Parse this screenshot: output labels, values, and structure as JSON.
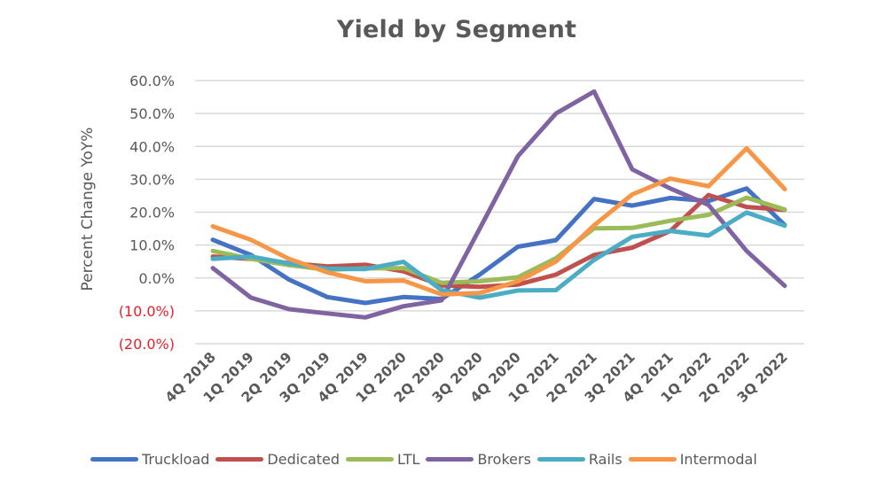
{
  "chart_data": {
    "type": "line",
    "title": "Yield by Segment",
    "xlabel": "",
    "ylabel": "Percent Change YoY%",
    "ylim": [
      -20,
      60
    ],
    "y_ticks": [
      {
        "value": 60,
        "label": "60.0%",
        "negative": false
      },
      {
        "value": 50,
        "label": "50.0%",
        "negative": false
      },
      {
        "value": 40,
        "label": "40.0%",
        "negative": false
      },
      {
        "value": 30,
        "label": "30.0%",
        "negative": false
      },
      {
        "value": 20,
        "label": "20.0%",
        "negative": false
      },
      {
        "value": 10,
        "label": "10.0%",
        "negative": false
      },
      {
        "value": 0,
        "label": "0.0%",
        "negative": false
      },
      {
        "value": -10,
        "label": "(10.0%)",
        "negative": true
      },
      {
        "value": -20,
        "label": "(20.0%)",
        "negative": true
      }
    ],
    "grid": true,
    "legend_position": "bottom",
    "categories": [
      "4Q 2018",
      "1Q 2019",
      "2Q 2019",
      "3Q 2019",
      "4Q 2019",
      "1Q 2020",
      "2Q 2020",
      "3Q 2020",
      "4Q 2020",
      "1Q 2021",
      "2Q 2021",
      "3Q 2021",
      "4Q 2021",
      "1Q 2022",
      "2Q 2022",
      "3Q 2022"
    ],
    "series": [
      {
        "name": "Truckload",
        "color": "#4472C4",
        "values": [
          11.6,
          7.0,
          -0.5,
          -5.8,
          -7.6,
          -5.8,
          -6.4,
          1.0,
          9.5,
          11.5,
          24.0,
          22.0,
          24.3,
          23.4,
          27.2,
          16.1
        ]
      },
      {
        "name": "Dedicated",
        "color": "#C0504D",
        "values": [
          6.5,
          5.8,
          4.5,
          3.5,
          4.0,
          2.0,
          -2.3,
          -2.7,
          -2.0,
          1.0,
          7.0,
          9.2,
          14.3,
          25.2,
          21.6,
          20.7
        ]
      },
      {
        "name": "LTL",
        "color": "#9BBB59",
        "values": [
          8.2,
          5.8,
          3.9,
          2.5,
          2.9,
          3.0,
          -1.5,
          -1.0,
          0.2,
          6.0,
          15.1,
          15.2,
          17.4,
          19.2,
          24.4,
          20.8
        ]
      },
      {
        "name": "Brokers",
        "color": "#8064A2",
        "values": [
          3.0,
          -6.0,
          -9.5,
          -10.8,
          -12.0,
          -8.6,
          -6.8,
          15.0,
          37.0,
          50.0,
          56.7,
          33.0,
          27.2,
          22.2,
          8.2,
          -2.4
        ]
      },
      {
        "name": "Rails",
        "color": "#4BACC6",
        "values": [
          5.8,
          6.5,
          4.4,
          2.8,
          2.7,
          4.9,
          -3.7,
          -6.0,
          -3.8,
          -3.7,
          5.5,
          12.5,
          14.3,
          12.9,
          19.9,
          15.9
        ]
      },
      {
        "name": "Intermodal",
        "color": "#F79646",
        "values": [
          15.7,
          11.6,
          5.8,
          1.7,
          -1.0,
          -0.8,
          -5.0,
          -4.6,
          -1.0,
          5.0,
          16.0,
          25.4,
          30.2,
          27.9,
          39.4,
          27.0
        ]
      }
    ]
  },
  "colors": {
    "text": "#595959",
    "negative_label": "#E8202A",
    "gridline": "#D9D9D9"
  }
}
